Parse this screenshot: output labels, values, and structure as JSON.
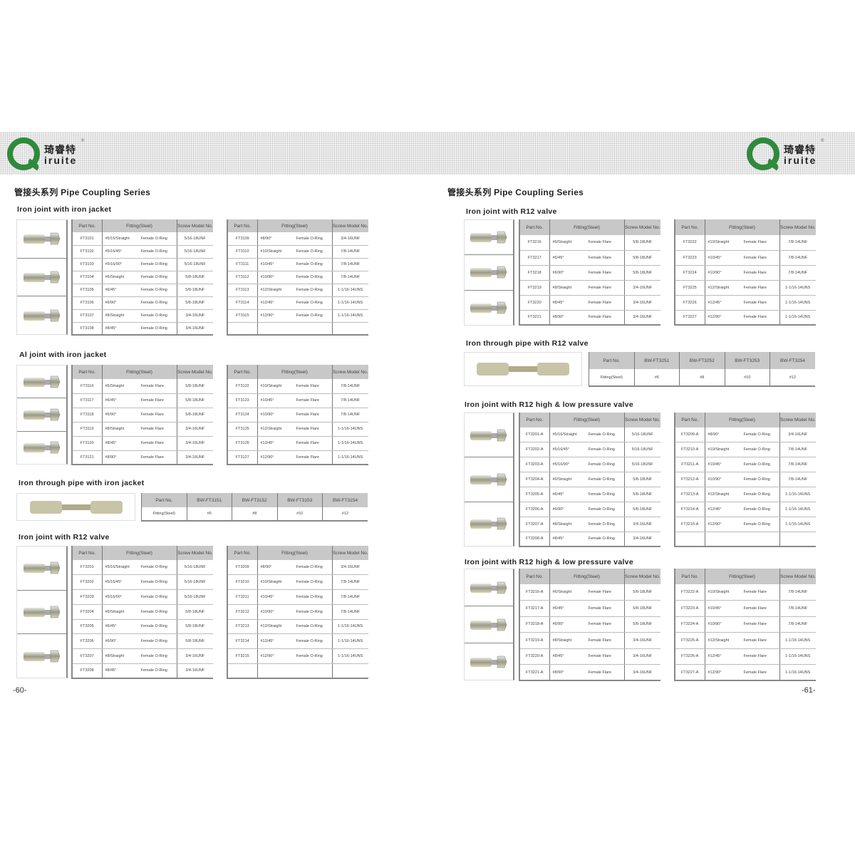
{
  "logo": {
    "cn": "琦睿特",
    "en": "iruite",
    "mark": "Q",
    "reg": "®",
    "color": "#2f8a3c"
  },
  "left_page": {
    "title": "管接头系列 Pipe Coupling Series",
    "page_number": "-60-",
    "sections": [
      {
        "heading": "Iron joint with iron jacket",
        "tables": [
          {
            "headers": [
              "Part No.",
              "Fitting(Steel)",
              "Screw Model No."
            ],
            "rows": [
              [
                "FT3101",
                "#5/16/Straight",
                "Female O-Ring",
                "5/16-18UNF"
              ],
              [
                "FT3102",
                "#5/16/45°",
                "Female O-Ring",
                "5/16-18UNF"
              ],
              [
                "FT3103",
                "#5/16/90°",
                "Female O-Ring",
                "5/16-18UNF"
              ],
              [
                "FT3104",
                "#6/Straight",
                "Female O-Ring",
                "5/8-18UNF"
              ],
              [
                "FT3105",
                "#6/45°",
                "Female O-Ring",
                "5/8-18UNF"
              ],
              [
                "FT3106",
                "#6/90°",
                "Female O-Ring",
                "5/8-18UNF"
              ],
              [
                "FT3107",
                "#8/Straight",
                "Female O-Ring",
                "3/4-16UNF"
              ],
              [
                "FT3108",
                "#8/45°",
                "Female O-Ring",
                "3/4-16UNF"
              ]
            ]
          },
          {
            "headers": [
              "Part No.",
              "Fitting(Steel)",
              "Screw Model No."
            ],
            "rows": [
              [
                "FT3109",
                "#8/90°",
                "Female O-Ring",
                "3/4-16UNF"
              ],
              [
                "FT3110",
                "#10/Straight",
                "Female O-Ring",
                "7/8-14UNF"
              ],
              [
                "FT3111",
                "#10/45°",
                "Female O-Ring",
                "7/8-14UNF"
              ],
              [
                "FT3112",
                "#10/90°",
                "Female O-Ring",
                "7/8-14UNF"
              ],
              [
                "FT3113",
                "#12/Straight",
                "Female O-Ring",
                "1-1/16-14UNS"
              ],
              [
                "FT3114",
                "#12/45°",
                "Female O-Ring",
                "1-1/16-14UNS"
              ],
              [
                "FT3115",
                "#12/90°",
                "Female O-Ring",
                "1-1/16-14UNS"
              ],
              [
                "",
                "",
                "",
                ""
              ]
            ]
          }
        ]
      },
      {
        "heading": "Al joint with iron jacket",
        "tables": [
          {
            "headers": [
              "Part No.",
              "Fitting(Steel)",
              "Screw Model No."
            ],
            "rows": [
              [
                "FT3116",
                "#6/Straight",
                "Female Flare",
                "5/8-18UNF"
              ],
              [
                "FT3117",
                "#6/45°",
                "Female Flare",
                "5/8-18UNF"
              ],
              [
                "FT3118",
                "#6/90°",
                "Female Flare",
                "5/8-18UNF"
              ],
              [
                "FT3119",
                "#8/Straight",
                "Female Flare",
                "3/4-16UNF"
              ],
              [
                "FT3120",
                "#8/45°",
                "Female Flare",
                "3/4-16UNF"
              ],
              [
                "FT3121",
                "#8/90°",
                "Female Flare",
                "3/4-16UNF"
              ]
            ]
          },
          {
            "headers": [
              "Part No.",
              "Fitting(Steel)",
              "Screw Model No."
            ],
            "rows": [
              [
                "FT3122",
                "#10/Straight",
                "Female Flare",
                "7/8-14UNF"
              ],
              [
                "FT3123",
                "#10/45°",
                "Female Flare",
                "7/8-14UNF"
              ],
              [
                "FT3124",
                "#10/90°",
                "Female Flare",
                "7/8-14UNF"
              ],
              [
                "FT3125",
                "#12/Straight",
                "Female Flare",
                "1-1/16-14UNS"
              ],
              [
                "FT3126",
                "#12/45°",
                "Female Flare",
                "1-1/16-14UNS"
              ],
              [
                "FT3127",
                "#12/90°",
                "Female Flare",
                "1-1/16-14UNS"
              ]
            ]
          }
        ]
      },
      {
        "heading": "Iron through pipe with iron jacket",
        "through": {
          "header": [
            "Part No.",
            "BW-FT3151",
            "BW-FT3152",
            "BW-FT3153",
            "BW-FT3154"
          ],
          "row": [
            "Fitting(Steel)",
            "#6",
            "#8",
            "#10",
            "#12"
          ]
        }
      },
      {
        "heading": "Iron joint with R12 valve",
        "tables": [
          {
            "headers": [
              "Part No.",
              "Fitting(Steel)",
              "Screw Model No."
            ],
            "rows": [
              [
                "FT3201",
                "#5/16/Straight",
                "Female O-Ring",
                "5/16-18UNF"
              ],
              [
                "FT3202",
                "#5/16/45°",
                "Female O-Ring",
                "5/16-18UNF"
              ],
              [
                "FT3203",
                "#5/16/90°",
                "Female O-Ring",
                "5/16-18UNF"
              ],
              [
                "FT3204",
                "#6/Straight",
                "Female O-Ring",
                "5/8-18UNF"
              ],
              [
                "FT3205",
                "#6/45°",
                "Female O-Ring",
                "5/8-18UNF"
              ],
              [
                "FT3206",
                "#6/90°",
                "Female O-Ring",
                "5/8-18UNF"
              ],
              [
                "FT3207",
                "#8/Straight",
                "Female O-Ring",
                "3/4-16UNF"
              ],
              [
                "FT3208",
                "#8/45°",
                "Female O-Ring",
                "3/4-16UNF"
              ]
            ]
          },
          {
            "headers": [
              "Part No.",
              "Fitting(Steel)",
              "Screw Model No."
            ],
            "rows": [
              [
                "FT3209",
                "#8/90°",
                "Female O-Ring",
                "3/4-16UNF"
              ],
              [
                "FT3210",
                "#10/Straight",
                "Female O-Ring",
                "7/8-14UNF"
              ],
              [
                "FT3211",
                "#10/45°",
                "Female O-Ring",
                "7/8-14UNF"
              ],
              [
                "FT3212",
                "#10/90°",
                "Female O-Ring",
                "7/8-14UNF"
              ],
              [
                "FT3213",
                "#12/Straight",
                "Female O-Ring",
                "1-1/16-14UNS"
              ],
              [
                "FT3214",
                "#12/45°",
                "Female O-Ring",
                "1-1/16-14UNS"
              ],
              [
                "FT3215",
                "#12/90°",
                "Female O-Ring",
                "1-1/16-14UNS"
              ],
              [
                "",
                "",
                "",
                ""
              ]
            ]
          }
        ]
      }
    ]
  },
  "right_page": {
    "title": "管接头系列 Pipe Coupling Series",
    "page_number": "-61-",
    "sections": [
      {
        "heading": "Iron joint with R12 valve",
        "tables": [
          {
            "headers": [
              "Part No.",
              "Fitting(Steel)",
              "Screw Model No."
            ],
            "rows": [
              [
                "FT3216",
                "#6/Straight",
                "Female Flare",
                "5/8-18UNF"
              ],
              [
                "FT3217",
                "#6/45°",
                "Female Flare",
                "5/8-18UNF"
              ],
              [
                "FT3218",
                "#6/90°",
                "Female Flare",
                "5/8-18UNF"
              ],
              [
                "FT3219",
                "#8/Straight",
                "Female Flare",
                "3/4-16UNF"
              ],
              [
                "FT3220",
                "#8/45°",
                "Female Flare",
                "3/4-16UNF"
              ],
              [
                "FT3221",
                "#8/90°",
                "Female Flare",
                "3/4-16UNF"
              ]
            ]
          },
          {
            "headers": [
              "Part No.",
              "Fitting(Steel)",
              "Screw Model No."
            ],
            "rows": [
              [
                "FT3222",
                "#10/Straight",
                "Female Flare",
                "7/8-14UNF"
              ],
              [
                "FT3223",
                "#10/45°",
                "Female Flare",
                "7/8-14UNF"
              ],
              [
                "FT3224",
                "#10/90°",
                "Female Flare",
                "7/8-14UNF"
              ],
              [
                "FT3225",
                "#12/Straight",
                "Female Flare",
                "1-1/16-14UNS"
              ],
              [
                "FT3226",
                "#12/45°",
                "Female Flare",
                "1-1/16-14UNS"
              ],
              [
                "FT3227",
                "#12/90°",
                "Female Flare",
                "1-1/16-14UNS"
              ]
            ]
          }
        ]
      },
      {
        "heading": "Iron through pipe with R12 valve",
        "through": {
          "header": [
            "Part No.",
            "BW-FT3251",
            "BW-FT3252",
            "BW-FT3253",
            "BW-FT3254"
          ],
          "row": [
            "Fitting(Steel)",
            "#6",
            "#8",
            "#10",
            "#12"
          ]
        }
      },
      {
        "heading": "Iron joint with R12 high & low pressure valve",
        "tables": [
          {
            "headers": [
              "Part No.",
              "Fitting(Steel)",
              "Screw Model No."
            ],
            "rows": [
              [
                "FT3201-A",
                "#5/16/Straight",
                "Female O-Ring",
                "5/16-18UNF"
              ],
              [
                "FT3202-A",
                "#5/16/45°",
                "Female O-Ring",
                "5/16-18UNF"
              ],
              [
                "FT3203-A",
                "#5/16/90°",
                "Female O-Ring",
                "5/16-18UNF"
              ],
              [
                "FT3204-A",
                "#6/Straight",
                "Female O-Ring",
                "5/8-18UNF"
              ],
              [
                "FT3205-A",
                "#6/45°",
                "Female O-Ring",
                "5/8-18UNF"
              ],
              [
                "FT3206-A",
                "#6/90°",
                "Female O-Ring",
                "5/8-18UNF"
              ],
              [
                "FT3207-A",
                "#8/Straight",
                "Female O-Ring",
                "3/4-16UNF"
              ],
              [
                "FT3208-A",
                "#8/45°",
                "Female O-Ring",
                "3/4-16UNF"
              ]
            ]
          },
          {
            "headers": [
              "Part No.",
              "Fitting(Steel)",
              "Screw Model No."
            ],
            "rows": [
              [
                "FT3209-A",
                "#8/90°",
                "Female O-Ring",
                "3/4-16UNF"
              ],
              [
                "FT3210-A",
                "#10/Straight",
                "Female O-Ring",
                "7/8-14UNF"
              ],
              [
                "FT3211-A",
                "#10/45°",
                "Female O-Ring",
                "7/8-14UNF"
              ],
              [
                "FT3212-A",
                "#10/90°",
                "Female O-Ring",
                "7/8-14UNF"
              ],
              [
                "FT3213-A",
                "#12/Straight",
                "Female O-Ring",
                "1-1/16-14UNS"
              ],
              [
                "FT3214-A",
                "#12/45°",
                "Female O-Ring",
                "1-1/16-14UNS"
              ],
              [
                "FT3215-A",
                "#12/90°",
                "Female O-Ring",
                "1-1/16-14UNS"
              ],
              [
                "",
                "",
                "",
                ""
              ]
            ]
          }
        ]
      },
      {
        "heading": "Iron joint with R12 high & low pressure valve",
        "tables": [
          {
            "headers": [
              "Part No.",
              "Fitting(Steel)",
              "Screw Model No."
            ],
            "rows": [
              [
                "FT3216-A",
                "#6/Straight",
                "Female Flare",
                "5/8-18UNF"
              ],
              [
                "FT3217-A",
                "#6/45°",
                "Female Flare",
                "5/8-18UNF"
              ],
              [
                "FT3218-A",
                "#6/90°",
                "Female Flare",
                "5/8-18UNF"
              ],
              [
                "FT3219-A",
                "#8/Straight",
                "Female Flare",
                "3/4-16UNF"
              ],
              [
                "FT3220-A",
                "#8/45°",
                "Female Flare",
                "3/4-16UNF"
              ],
              [
                "FT3221-A",
                "#8/90°",
                "Female Flare",
                "3/4-16UNF"
              ]
            ]
          },
          {
            "headers": [
              "Part No.",
              "Fitting(Steel)",
              "Screw Model No."
            ],
            "rows": [
              [
                "FT3222-A",
                "#10/Straight",
                "Female Flare",
                "7/8-14UNF"
              ],
              [
                "FT3223-A",
                "#10/45°",
                "Female Flare",
                "7/8-14UNF"
              ],
              [
                "FT3224-A",
                "#10/90°",
                "Female Flare",
                "7/8-14UNF"
              ],
              [
                "FT3225-A",
                "#12/Straight",
                "Female Flare",
                "1-1/16-14UNS"
              ],
              [
                "FT3226-A",
                "#12/45°",
                "Female Flare",
                "1-1/16-14UNS"
              ],
              [
                "FT3227-A",
                "#12/90°",
                "Female Flare",
                "1-1/16-14UNS"
              ]
            ]
          }
        ]
      }
    ]
  }
}
